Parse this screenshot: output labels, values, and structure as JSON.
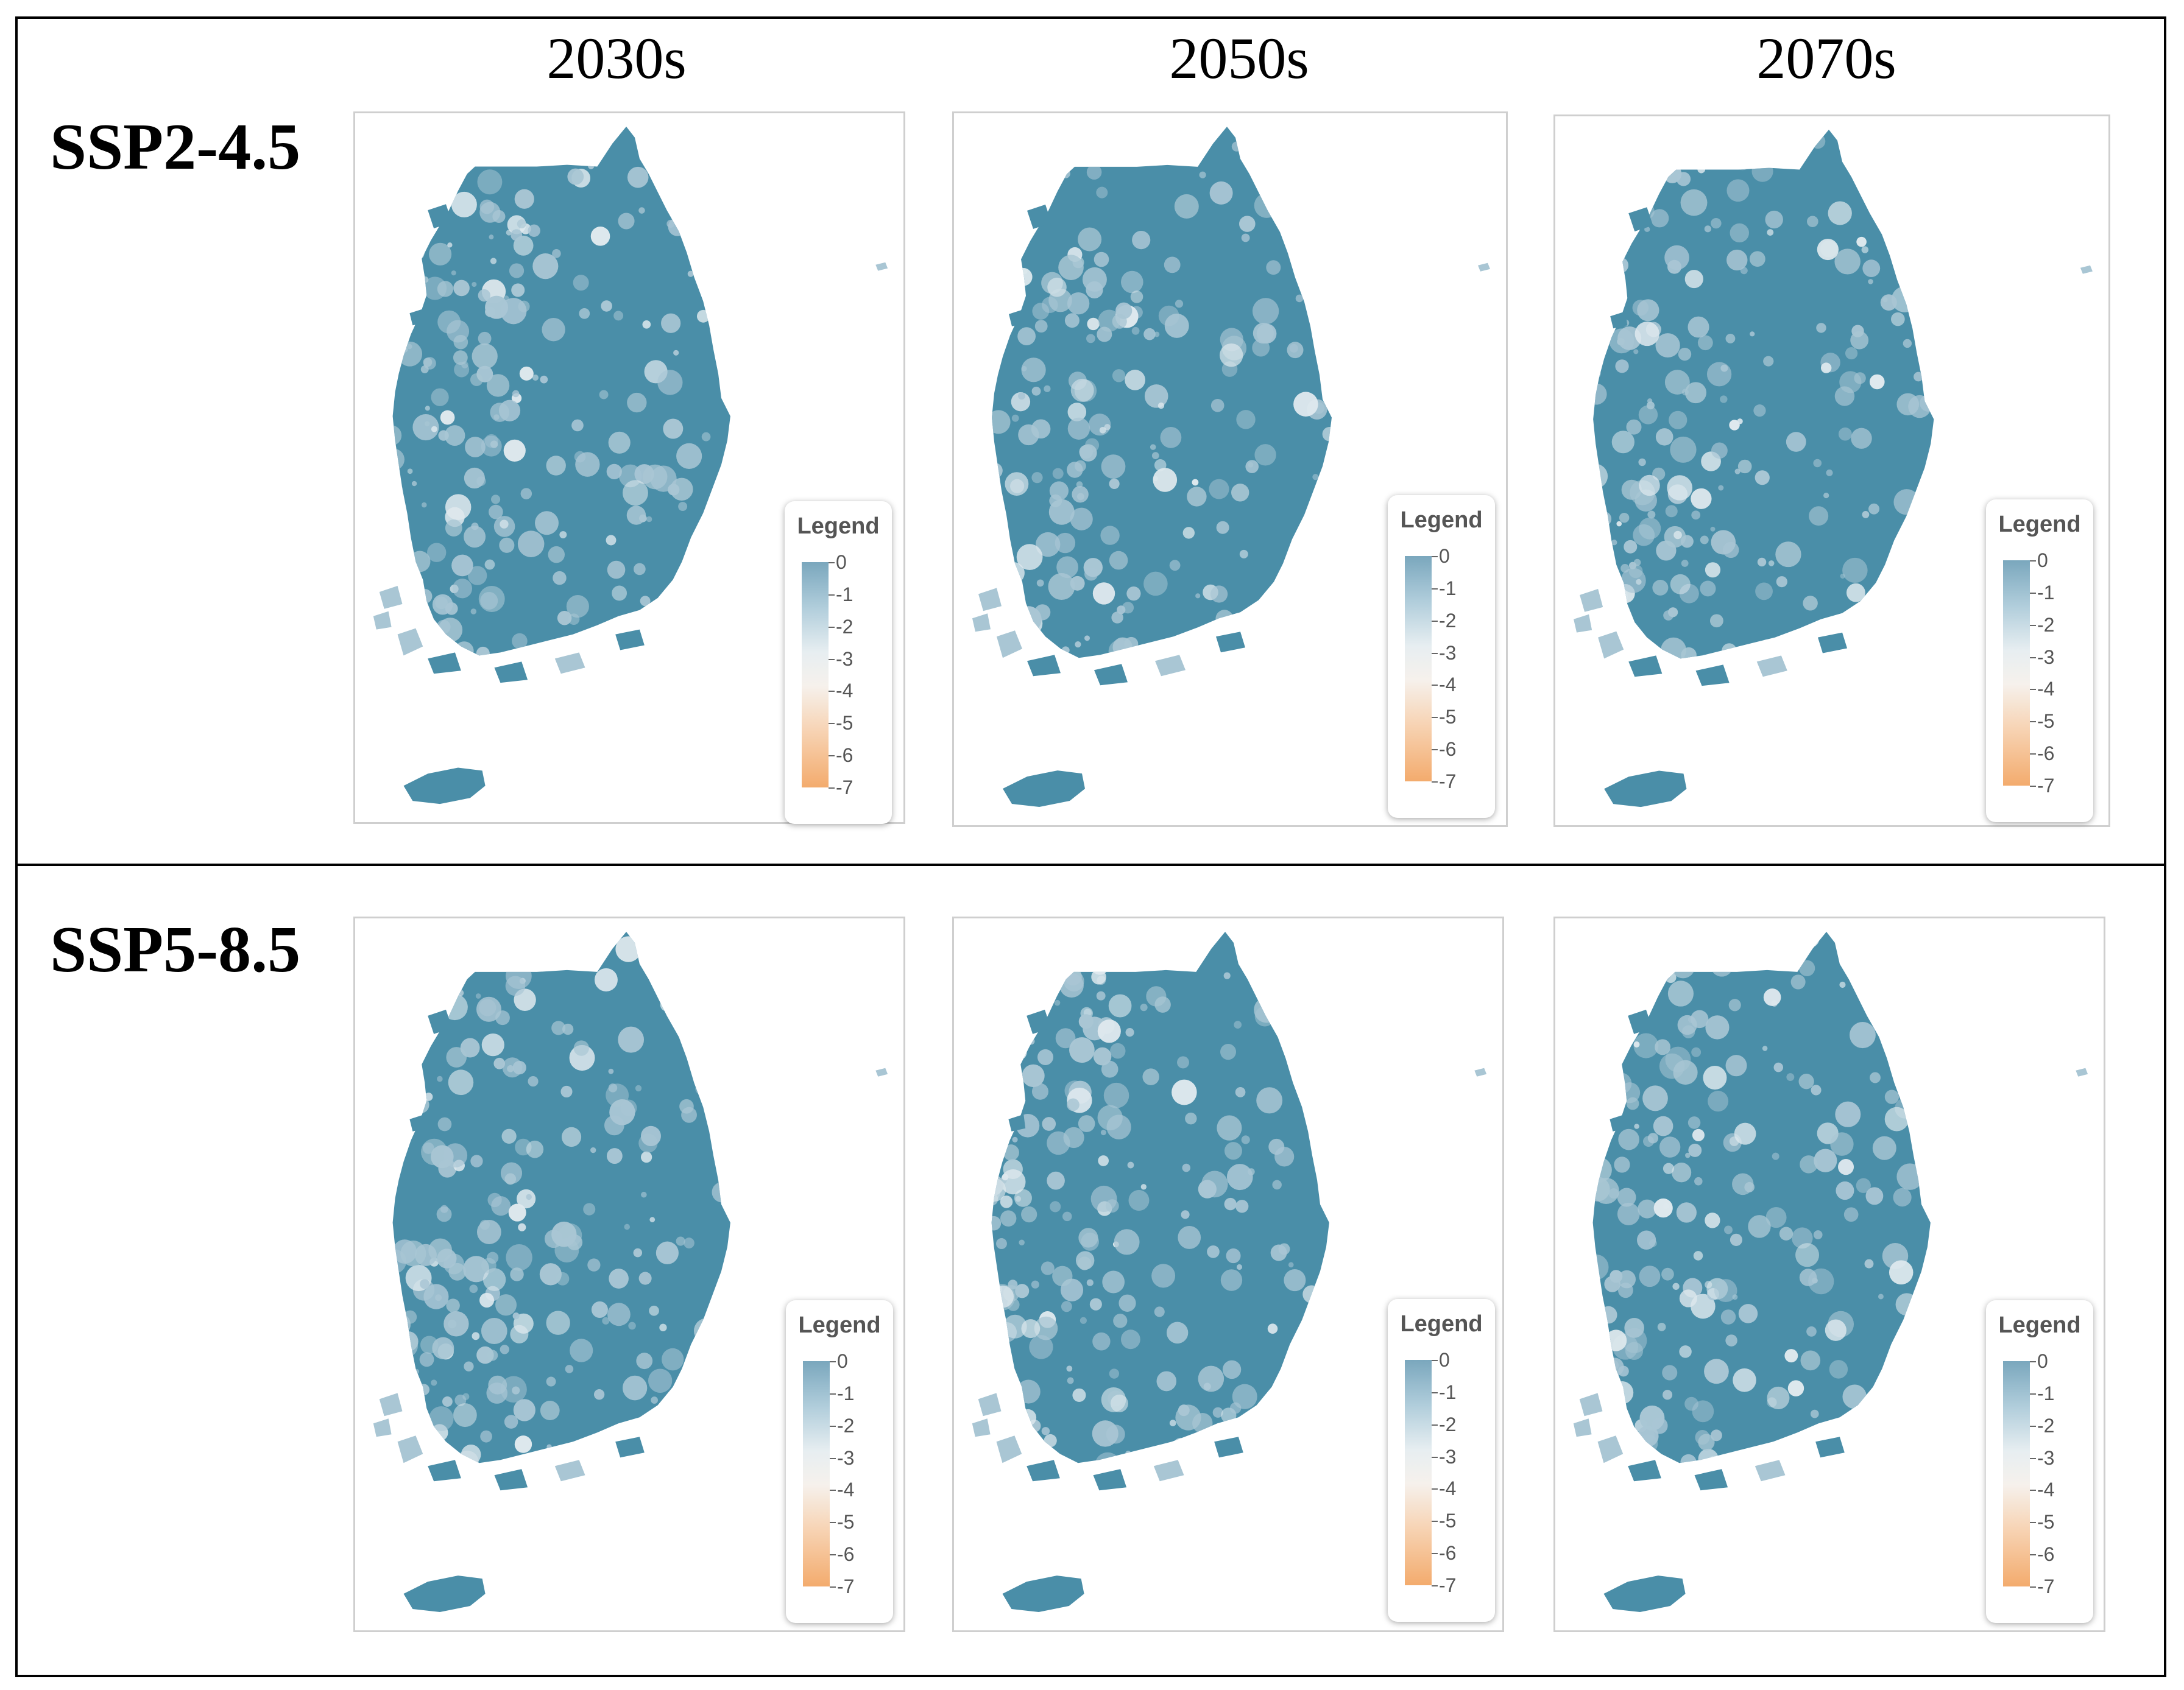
{
  "column_headers": [
    "2030s",
    "2050s",
    "2070s"
  ],
  "rows": [
    {
      "label": "SSP2-4.5",
      "panels": [
        {
          "period": "2030s",
          "legend": {
            "title": "Legend",
            "labels": [
              "0",
              "-1",
              "-2",
              "-3",
              "-4",
              "-5",
              "-6",
              "-7"
            ]
          }
        },
        {
          "period": "2050s",
          "legend": {
            "title": "Legend",
            "labels": [
              "0",
              "-1",
              "-2",
              "-3",
              "-4",
              "-5",
              "-6",
              "-7"
            ]
          }
        },
        {
          "period": "2070s",
          "legend": {
            "title": "Legend",
            "labels": [
              "0",
              "-1",
              "-2",
              "-3",
              "-4",
              "-5",
              "-6",
              "-7"
            ]
          }
        }
      ]
    },
    {
      "label": "SSP5-8.5",
      "panels": [
        {
          "period": "2030s",
          "legend": {
            "title": "Legend",
            "labels": [
              "0",
              "-1",
              "-2",
              "-3",
              "-4",
              "-5",
              "-6",
              "-7"
            ]
          }
        },
        {
          "period": "2050s",
          "legend": {
            "title": "Legend",
            "labels": [
              "0",
              "-1",
              "-2",
              "-3",
              "-4",
              "-5",
              "-6",
              "-7"
            ]
          }
        },
        {
          "period": "2070s",
          "legend": {
            "title": "Legend",
            "labels": [
              "0",
              "-1",
              "-2",
              "-3",
              "-4",
              "-5",
              "-6",
              "-7"
            ]
          }
        }
      ]
    }
  ],
  "legend_scale": {
    "max": 0,
    "min": -7,
    "colors": [
      "#7aa7bd",
      "#e7eef1",
      "#f3ab6d"
    ]
  },
  "map_colors": {
    "dark": "#4a8ea8",
    "light": "#a9c6d4"
  }
}
